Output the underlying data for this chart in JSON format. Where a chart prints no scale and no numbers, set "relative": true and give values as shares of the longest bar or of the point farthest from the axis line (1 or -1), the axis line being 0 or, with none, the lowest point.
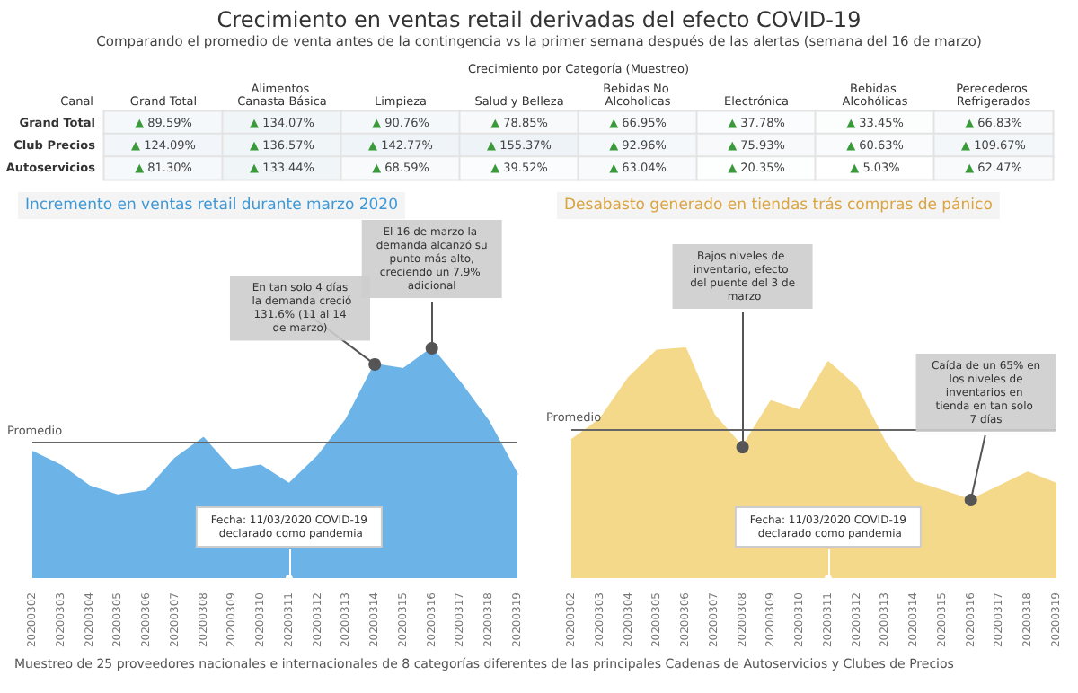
{
  "chart_data": [
    {
      "type": "heatmap",
      "title": "Crecimiento en ventas retail derivadas del efecto COVID-19",
      "subtitle": "Comparando el promedio de venta antes de la contingencia vs la primer semana después de las alertas (semana del 16 de marzo)",
      "xlabel": "Crecimiento por Categoría (Muestreo)",
      "ylabel": "Canal",
      "categories": [
        "Grand Total",
        "Alimentos Canasta Básica",
        "Limpieza",
        "Salud y Belleza",
        "Bebidas No Alcoholicas",
        "Electrónica",
        "Bebidas Alcohólicas",
        "Perecederos Refrigerados"
      ],
      "y_categories": [
        "Grand Total",
        "Club Precios",
        "Autoservicios"
      ],
      "cells": [
        [
          89.59,
          134.07,
          90.76,
          78.85,
          66.95,
          37.78,
          33.45,
          66.83
        ],
        [
          124.09,
          136.57,
          142.77,
          155.37,
          92.96,
          75.93,
          60.63,
          109.67
        ],
        [
          81.3,
          133.44,
          68.59,
          39.52,
          63.04,
          20.35,
          5.03,
          62.47
        ]
      ],
      "cell_labels": [
        [
          "▲ 89.59%",
          "▲ 134.07%",
          "▲ 90.76%",
          "▲ 78.85%",
          "▲ 66.95%",
          "▲ 37.78%",
          "▲ 33.45%",
          "▲ 66.83%"
        ],
        [
          "▲ 124.09%",
          "▲ 136.57%",
          "▲ 142.77%",
          "▲ 155.37%",
          "▲ 92.96%",
          "▲ 75.93%",
          "▲ 60.63%",
          "▲ 109.67%"
        ],
        [
          "▲ 81.30%",
          "▲ 133.44%",
          "▲ 68.59%",
          "▲ 39.52%",
          "▲ 63.04%",
          "▲ 20.35%",
          "▲ 5.03%",
          "▲ 62.47%"
        ]
      ],
      "annotations": [
        "Muestreo de 25 proveedores nacionales e internacionales de 8 categorías diferentes de las principales Cadenas de Autoservicios y Clubes de Precios"
      ]
    },
    {
      "type": "area",
      "title": "Incremento en ventas retail durante marzo 2020",
      "relative": true,
      "marker": "none",
      "categories": [
        "20200302",
        "20200303",
        "20200304",
        "20200305",
        "20200306",
        "20200307",
        "20200308",
        "20200309",
        "20200310",
        "20200311",
        "20200312",
        "20200313",
        "20200314",
        "20200315",
        "20200316",
        "20200317",
        "20200318",
        "20200319"
      ],
      "series": [
        {
          "color": "#6cb4e8",
          "values": [
            0.55,
            0.49,
            0.4,
            0.36,
            0.38,
            0.52,
            0.61,
            0.47,
            0.49,
            0.41,
            0.53,
            0.69,
            0.93,
            0.91,
            1,
            0.85,
            0.68,
            0.45
          ]
        }
      ],
      "ref_lines": [
        {
          "axis": "y",
          "value": 0.59,
          "label": "Promedio"
        }
      ],
      "annotations": [
        {
          "text": "En tan solo 4 días la demanda creció 131.6% (11 al 14 de marzo)",
          "x": "20200314",
          "y": 0.93
        },
        {
          "text": "El 16 de marzo la demanda alcanzó su punto más alto, creciendo un 7.9% adicional",
          "x": "20200316",
          "y": 1
        },
        {
          "text": "Fecha: 11/03/2020 COVID-19 declarado como pandemia",
          "x": "20200311",
          "y": 0
        }
      ]
    },
    {
      "type": "area",
      "title": "Desabasto generado en tiendas trás compras de pánico",
      "relative": true,
      "marker": "none",
      "categories": [
        "20200302",
        "20200303",
        "20200304",
        "20200305",
        "20200306",
        "20200307",
        "20200308",
        "20200309",
        "20200310",
        "20200311",
        "20200312",
        "20200313",
        "20200314",
        "20200315",
        "20200316",
        "20200317",
        "20200318",
        "20200319"
      ],
      "series": [
        {
          "color": "#f5d98a",
          "values": [
            0.6,
            0.69,
            0.87,
            0.99,
            1,
            0.71,
            0.57,
            0.77,
            0.73,
            0.94,
            0.83,
            0.59,
            0.42,
            0.38,
            0.34,
            0.4,
            0.46,
            0.41
          ]
        }
      ],
      "ref_lines": [
        {
          "axis": "y",
          "value": 0.65,
          "label": "Promedio"
        }
      ],
      "annotations": [
        {
          "text": "Bajos niveles de inventario, efecto del puente del 3 de marzo",
          "x": "20200308",
          "y": 0.57
        },
        {
          "text": "Caída de un 65% en los niveles de inventarios en tienda en tan solo 7 días",
          "x": "20200316",
          "y": 0.34
        },
        {
          "text": "Fecha: 11/03/2020 COVID-19 declarado como pandemia",
          "x": "20200311",
          "y": 0
        }
      ]
    }
  ]
}
